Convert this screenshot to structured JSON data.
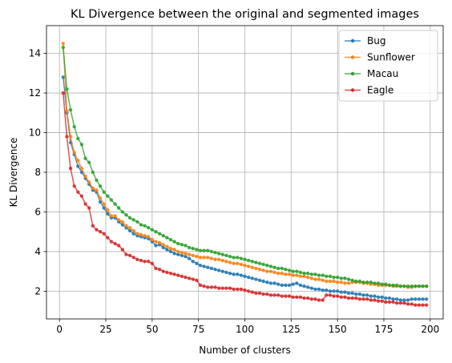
{
  "chart_data": {
    "type": "line",
    "title": "KL Divergence between the original and segmented images",
    "xlabel": "Number of clusters",
    "ylabel": "KL Divergence",
    "xlim": [
      -7,
      207
    ],
    "ylim": [
      0.6,
      15.4
    ],
    "xticks": [
      "0",
      "25",
      "50",
      "75",
      "100",
      "125",
      "150",
      "175",
      "200"
    ],
    "yticks": [
      "2",
      "4",
      "6",
      "8",
      "10",
      "12",
      "14"
    ],
    "grid": true,
    "legend_position": "top-right",
    "x_start": 2,
    "x_step": 2,
    "series": [
      {
        "name": "Bug",
        "color": "#1f77b4",
        "values": [
          12.8,
          11.0,
          9.5,
          8.9,
          8.3,
          8.0,
          7.7,
          7.4,
          7.1,
          7.0,
          6.5,
          6.2,
          5.9,
          5.7,
          5.7,
          5.5,
          5.35,
          5.2,
          5.05,
          4.9,
          4.8,
          4.75,
          4.7,
          4.65,
          4.5,
          4.3,
          4.35,
          4.2,
          4.1,
          4.0,
          3.9,
          3.85,
          3.8,
          3.75,
          3.65,
          3.5,
          3.4,
          3.3,
          3.25,
          3.2,
          3.15,
          3.1,
          3.05,
          3.0,
          2.95,
          2.9,
          2.85,
          2.85,
          2.8,
          2.75,
          2.7,
          2.65,
          2.6,
          2.55,
          2.5,
          2.45,
          2.4,
          2.4,
          2.35,
          2.3,
          2.3,
          2.3,
          2.35,
          2.4,
          2.3,
          2.25,
          2.2,
          2.15,
          2.1,
          2.1,
          2.05,
          2.05,
          2.0,
          2.0,
          2.0,
          1.95,
          1.95,
          1.9,
          1.9,
          1.85,
          1.85,
          1.8,
          1.8,
          1.75,
          1.75,
          1.7,
          1.7,
          1.65,
          1.65,
          1.6,
          1.6,
          1.55,
          1.55,
          1.55,
          1.6,
          1.6,
          1.6,
          1.6,
          1.6
        ]
      },
      {
        "name": "Sunflower",
        "color": "#ff7f0e",
        "values": [
          14.5,
          11.1,
          9.8,
          9.0,
          8.6,
          8.2,
          7.8,
          7.5,
          7.2,
          7.1,
          6.7,
          6.4,
          6.1,
          5.8,
          5.8,
          5.6,
          5.5,
          5.3,
          5.2,
          5.05,
          4.9,
          4.85,
          4.8,
          4.75,
          4.6,
          4.5,
          4.45,
          4.35,
          4.25,
          4.15,
          4.1,
          4.0,
          3.95,
          3.9,
          3.85,
          3.8,
          3.75,
          3.7,
          3.7,
          3.7,
          3.65,
          3.6,
          3.6,
          3.55,
          3.5,
          3.45,
          3.4,
          3.4,
          3.35,
          3.3,
          3.25,
          3.2,
          3.15,
          3.1,
          3.05,
          3.0,
          3.0,
          2.95,
          2.9,
          2.9,
          2.85,
          2.85,
          2.8,
          2.8,
          2.75,
          2.75,
          2.7,
          2.65,
          2.6,
          2.6,
          2.55,
          2.5,
          2.5,
          2.5,
          2.45,
          2.45,
          2.4,
          2.4,
          2.45,
          2.45,
          2.45,
          2.4,
          2.4,
          2.35,
          2.35,
          2.3,
          2.3,
          2.3,
          2.3,
          2.25,
          2.25,
          2.25,
          2.25,
          2.2,
          2.2,
          2.25,
          2.25,
          2.25,
          2.25
        ]
      },
      {
        "name": "Macau",
        "color": "#2ca02c",
        "values": [
          14.3,
          12.2,
          11.15,
          10.3,
          9.7,
          9.4,
          8.7,
          8.5,
          8.0,
          7.6,
          7.3,
          7.0,
          6.8,
          6.6,
          6.4,
          6.2,
          6.0,
          5.85,
          5.7,
          5.6,
          5.5,
          5.35,
          5.3,
          5.2,
          5.1,
          5.0,
          4.9,
          4.8,
          4.7,
          4.6,
          4.5,
          4.4,
          4.35,
          4.3,
          4.2,
          4.15,
          4.1,
          4.05,
          4.05,
          4.05,
          4.0,
          3.95,
          3.9,
          3.85,
          3.8,
          3.75,
          3.7,
          3.7,
          3.65,
          3.6,
          3.55,
          3.5,
          3.45,
          3.4,
          3.35,
          3.3,
          3.25,
          3.2,
          3.15,
          3.15,
          3.1,
          3.05,
          3.0,
          3.0,
          2.95,
          2.9,
          2.9,
          2.85,
          2.85,
          2.8,
          2.8,
          2.75,
          2.75,
          2.7,
          2.7,
          2.65,
          2.65,
          2.6,
          2.55,
          2.5,
          2.5,
          2.45,
          2.45,
          2.45,
          2.4,
          2.4,
          2.35,
          2.35,
          2.3,
          2.3,
          2.3,
          2.25,
          2.25,
          2.25,
          2.25,
          2.25,
          2.25,
          2.25,
          2.25
        ]
      },
      {
        "name": "Eagle",
        "color": "#d62728",
        "values": [
          12.0,
          9.8,
          8.2,
          7.3,
          7.0,
          6.8,
          6.4,
          6.2,
          5.3,
          5.1,
          5.0,
          4.9,
          4.7,
          4.5,
          4.4,
          4.3,
          4.1,
          3.85,
          3.8,
          3.7,
          3.6,
          3.55,
          3.5,
          3.5,
          3.4,
          3.15,
          3.1,
          3.0,
          2.95,
          2.9,
          2.85,
          2.8,
          2.75,
          2.7,
          2.65,
          2.6,
          2.55,
          2.3,
          2.25,
          2.2,
          2.2,
          2.2,
          2.15,
          2.15,
          2.15,
          2.15,
          2.1,
          2.1,
          2.1,
          2.05,
          2.0,
          1.95,
          1.9,
          1.9,
          1.85,
          1.85,
          1.8,
          1.8,
          1.8,
          1.75,
          1.75,
          1.75,
          1.7,
          1.7,
          1.7,
          1.65,
          1.65,
          1.6,
          1.6,
          1.55,
          1.55,
          1.8,
          1.8,
          1.75,
          1.75,
          1.7,
          1.7,
          1.65,
          1.65,
          1.65,
          1.6,
          1.6,
          1.6,
          1.55,
          1.55,
          1.5,
          1.5,
          1.45,
          1.45,
          1.45,
          1.4,
          1.4,
          1.4,
          1.35,
          1.35,
          1.3,
          1.3,
          1.3,
          1.3
        ]
      }
    ]
  }
}
